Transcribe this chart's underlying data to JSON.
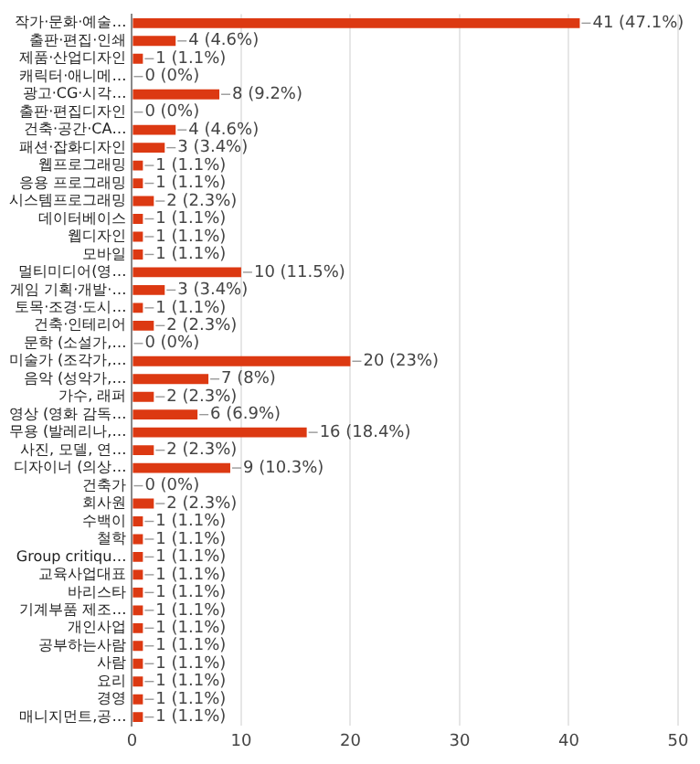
{
  "chart_data": {
    "type": "bar",
    "orientation": "horizontal",
    "categories": [
      "작가·문화·예술…",
      "출판·편집·인쇄",
      "제품·산업디자인",
      "캐릭터·애니메…",
      "광고·CG·시각…",
      "출판·편집디자인",
      "건축·공간·CA…",
      "패션·잡화디자인",
      "웹프로그래밍",
      "응용 프로그래밍",
      "시스템프로그래밍",
      "데이터베이스",
      "웹디자인",
      "모바일",
      "멀티미디어(영…",
      "게임 기획·개발·…",
      "토목·조경·도시…",
      "건축·인테리어",
      "문학 (소설가,…",
      "미술가 (조각가,…",
      "음악 (성악가,…",
      "가수, 래퍼",
      "영상 (영화 감독…",
      "무용 (발레리나,…",
      "사진, 모델, 연…",
      "디자이너 (의상…",
      "건축가",
      "회사원",
      "수백이",
      "철학",
      "Group critiqu…",
      "교육사업대표",
      "바리스타",
      "기계부품 제조…",
      "개인사업",
      "공부하는사람",
      "사람",
      "요리",
      "경영",
      "매니지먼트,공…"
    ],
    "values": [
      41,
      4,
      1,
      0,
      8,
      0,
      4,
      3,
      1,
      1,
      2,
      1,
      1,
      1,
      10,
      3,
      1,
      2,
      0,
      20,
      7,
      2,
      6,
      16,
      2,
      9,
      0,
      2,
      1,
      1,
      1,
      1,
      1,
      1,
      1,
      1,
      1,
      1,
      1,
      1
    ],
    "value_labels": [
      "41 (47.1%)",
      "4 (4.6%)",
      "1 (1.1%)",
      "0 (0%)",
      "8 (9.2%)",
      "0 (0%)",
      "4 (4.6%)",
      "3 (3.4%)",
      "1 (1.1%)",
      "1 (1.1%)",
      "2 (2.3%)",
      "1 (1.1%)",
      "1 (1.1%)",
      "1 (1.1%)",
      "10 (11.5%)",
      "3 (3.4%)",
      "1 (1.1%)",
      "2 (2.3%)",
      "0 (0%)",
      "20 (23%)",
      "7 (8%)",
      "2 (2.3%)",
      "6 (6.9%)",
      "16 (18.4%)",
      "2 (2.3%)",
      "9 (10.3%)",
      "0 (0%)",
      "2 (2.3%)",
      "1 (1.1%)",
      "1 (1.1%)",
      "1 (1.1%)",
      "1 (1.1%)",
      "1 (1.1%)",
      "1 (1.1%)",
      "1 (1.1%)",
      "1 (1.1%)",
      "1 (1.1%)",
      "1 (1.1%)",
      "1 (1.1%)",
      "1 (1.1%)"
    ],
    "color": "#dc3912",
    "xlim": [
      0,
      50
    ],
    "xticks": [
      0,
      10,
      20,
      30,
      40,
      50
    ],
    "grid": "x"
  }
}
